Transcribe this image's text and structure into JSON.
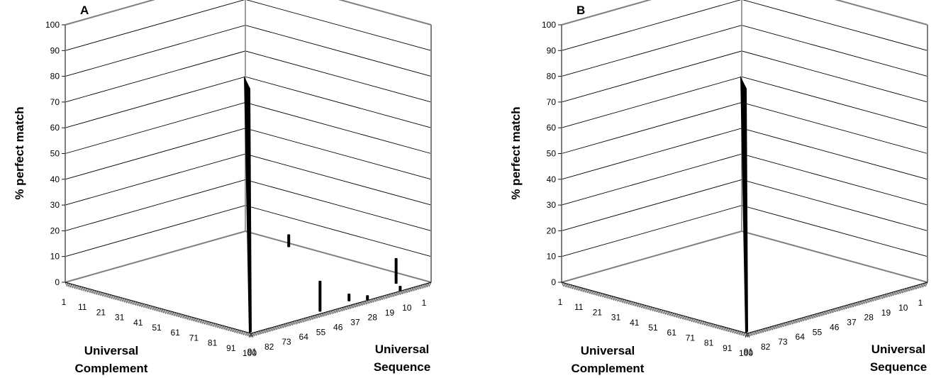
{
  "chart_data": [
    {
      "type": "bar3d",
      "panel_label": "A",
      "zlabel": "% perfect match",
      "xlabel_lines": [
        "Universal",
        "Complement"
      ],
      "ylabel_lines": [
        "Universal",
        "Sequence"
      ],
      "zlim": [
        0,
        100
      ],
      "z_ticks": [
        0,
        10,
        20,
        30,
        40,
        50,
        60,
        70,
        80,
        90,
        100
      ],
      "x_tick_labels": [
        "1",
        "11",
        "21",
        "31",
        "41",
        "51",
        "61",
        "71",
        "81",
        "91",
        "100"
      ],
      "y_tick_labels": [
        "1",
        "10",
        "19",
        "28",
        "37",
        "46",
        "55",
        "64",
        "73",
        "82",
        "91"
      ],
      "grid": true,
      "bars": [
        {
          "x": 100,
          "y": 100,
          "z": 100
        },
        {
          "x": 28,
          "y": 5,
          "z": 5
        },
        {
          "x": 92,
          "y": 12,
          "z": 10
        },
        {
          "x": 96,
          "y": 42,
          "z": 3
        },
        {
          "x": 98,
          "y": 60,
          "z": 12
        },
        {
          "x": 100,
          "y": 36,
          "z": 2
        },
        {
          "x": 100,
          "y": 18,
          "z": 2
        }
      ]
    },
    {
      "type": "bar3d",
      "panel_label": "B",
      "zlabel": "% perfect match",
      "xlabel_lines": [
        "Universal",
        "Complement"
      ],
      "ylabel_lines": [
        "Universal",
        "Sequence"
      ],
      "zlim": [
        0,
        100
      ],
      "z_ticks": [
        0,
        10,
        20,
        30,
        40,
        50,
        60,
        70,
        80,
        90,
        100
      ],
      "x_tick_labels": [
        "1",
        "11",
        "21",
        "31",
        "41",
        "51",
        "61",
        "71",
        "81",
        "91",
        "100"
      ],
      "y_tick_labels": [
        "1",
        "10",
        "19",
        "28",
        "37",
        "46",
        "55",
        "64",
        "73",
        "82",
        "91"
      ],
      "grid": true,
      "bars": [
        {
          "x": 100,
          "y": 100,
          "z": 100
        }
      ]
    }
  ]
}
